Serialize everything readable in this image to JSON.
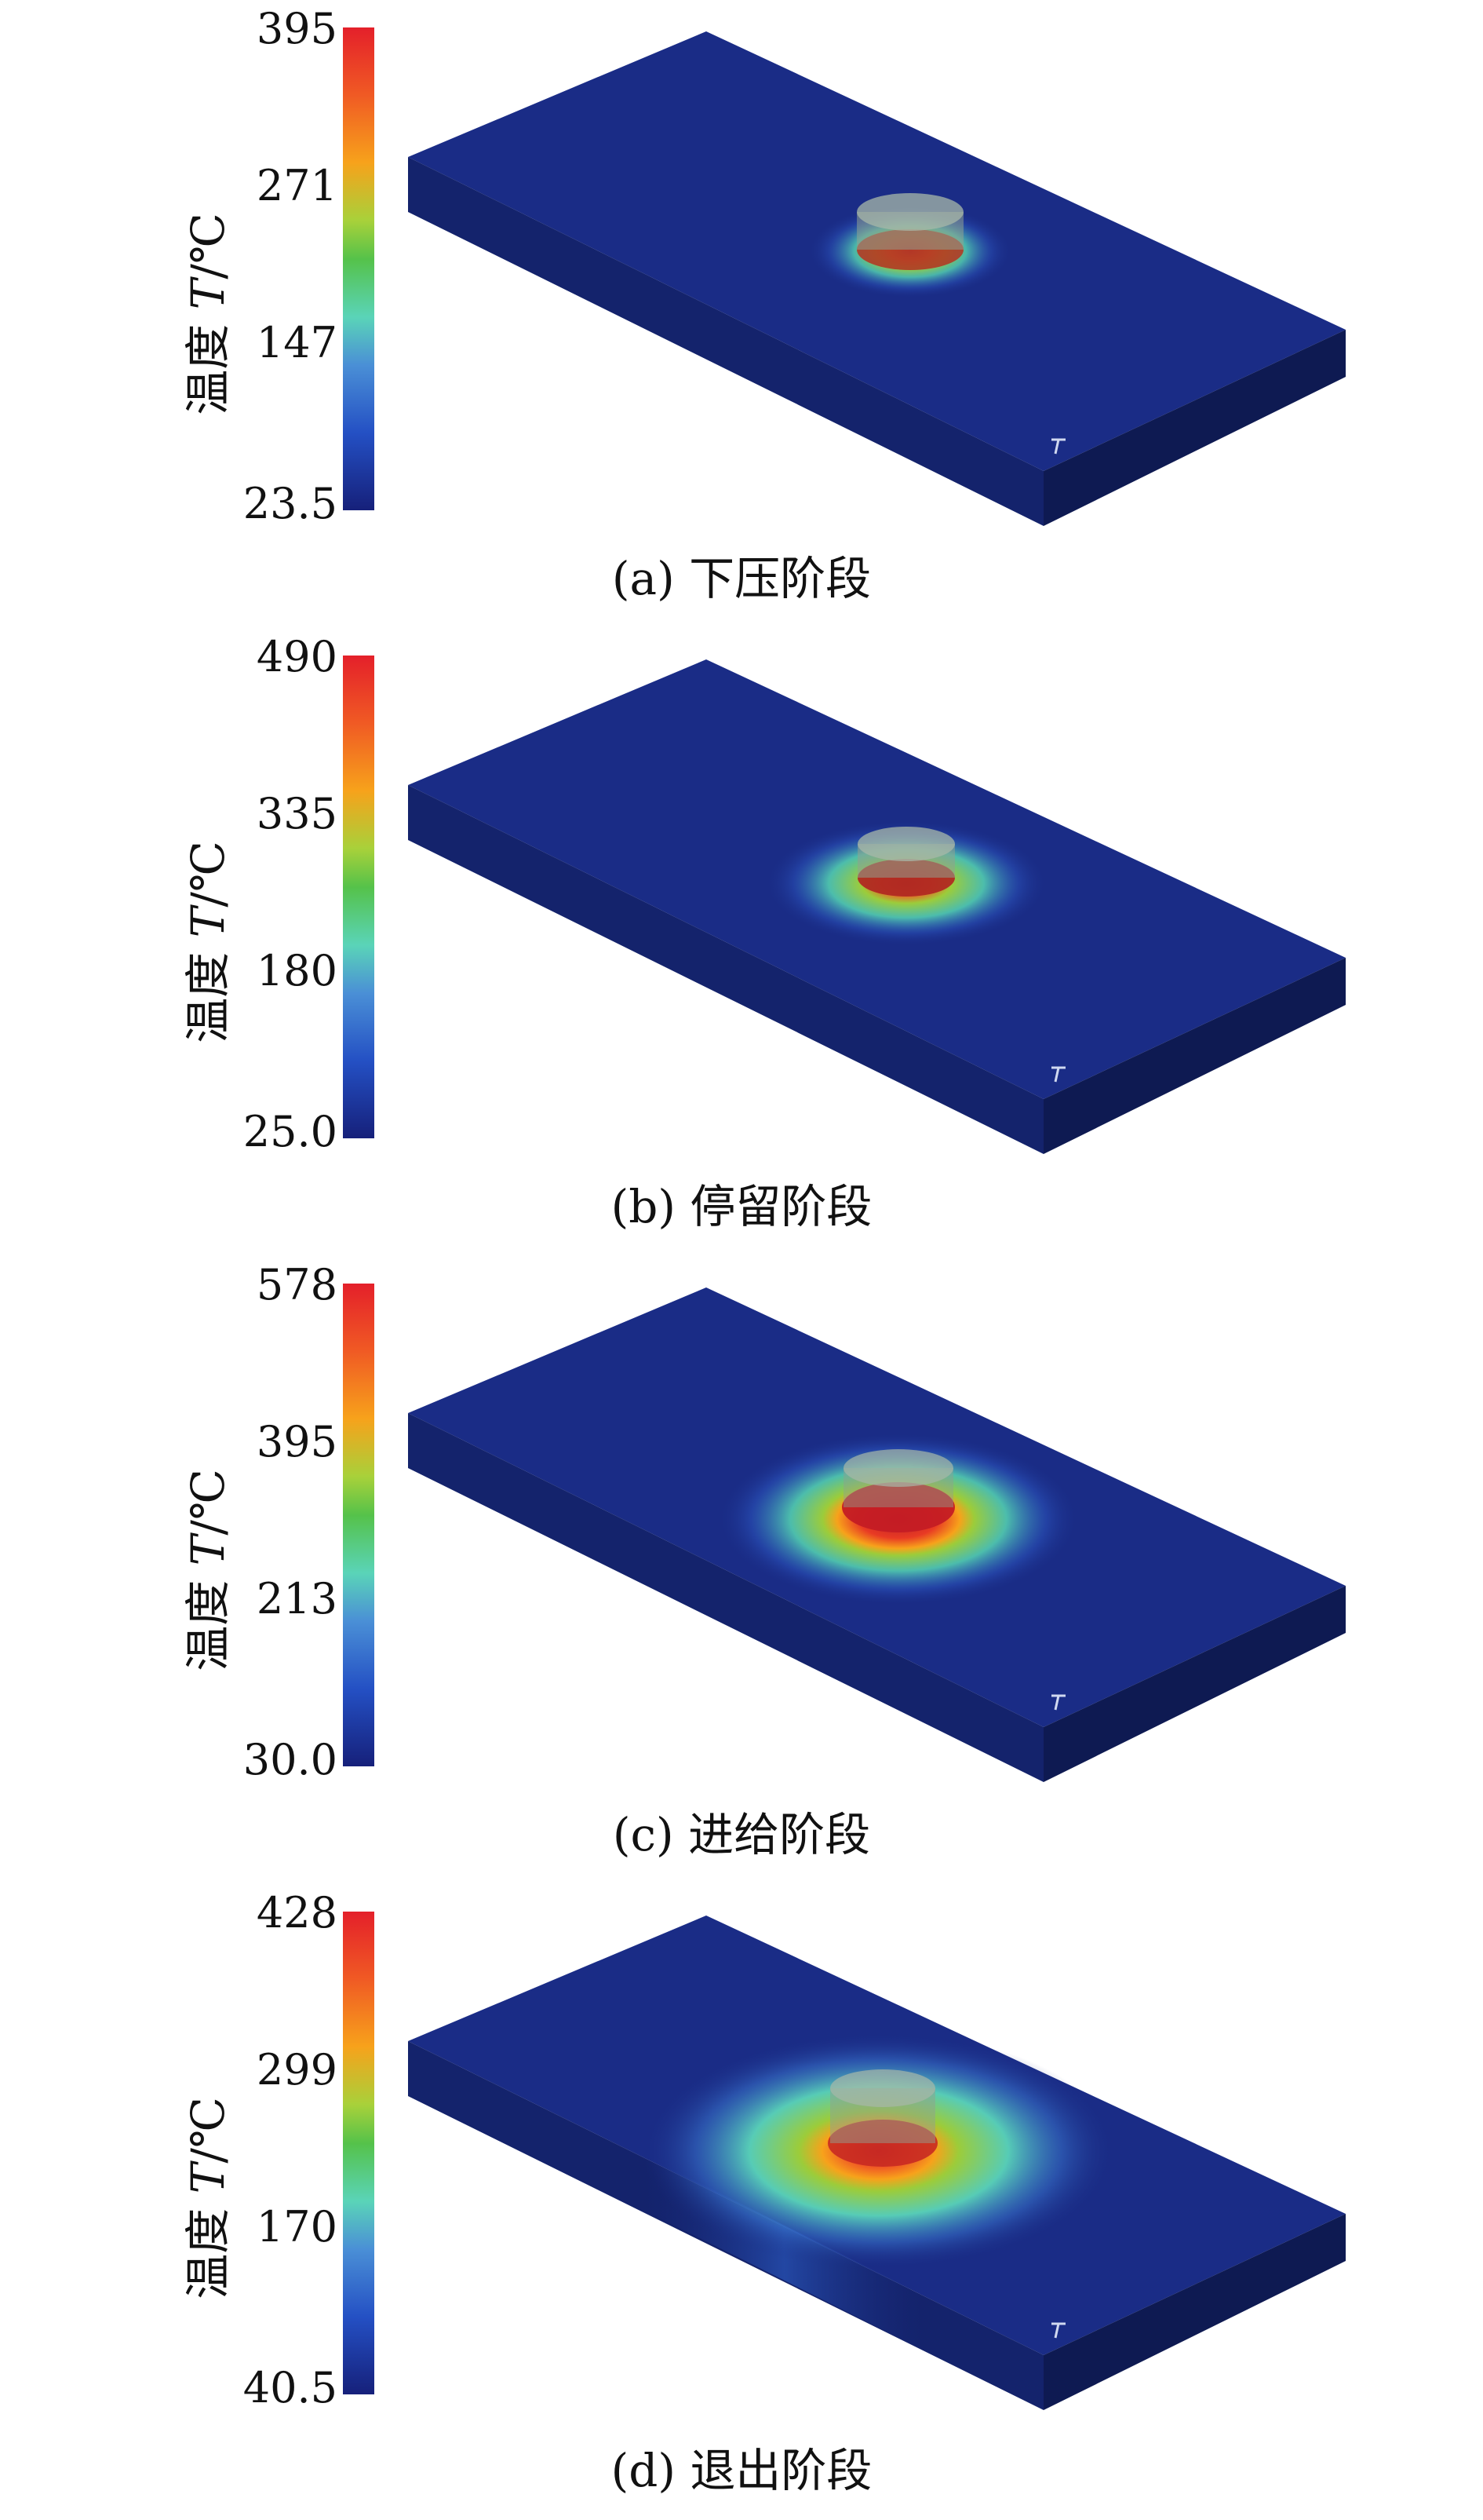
{
  "axis_label": {
    "prefix": "温度",
    "symbol": "T",
    "unit": "/℃"
  },
  "panels": [
    {
      "caption": "(a) 下压阶段",
      "ticks": [
        "395",
        "271",
        "147",
        "23.5"
      ],
      "hotspot": {
        "spread": 0.55,
        "intensity": 0.7
      }
    },
    {
      "caption": "(b) 停留阶段",
      "ticks": [
        "490",
        "335",
        "180",
        "25.0"
      ],
      "hotspot": {
        "spread": 0.7,
        "intensity": 0.85
      }
    },
    {
      "caption": "(c) 进给阶段",
      "ticks": [
        "578",
        "395",
        "213",
        "30.0"
      ],
      "hotspot": {
        "spread": 0.85,
        "intensity": 1.0
      }
    },
    {
      "caption": "(d) 退出阶段",
      "ticks": [
        "428",
        "299",
        "170",
        "40.5"
      ],
      "hotspot": {
        "spread": 1.0,
        "intensity": 0.8
      }
    }
  ],
  "colors": {
    "hot": "#e4202a",
    "warm": "#f7a21b",
    "mid": "#55c24a",
    "cool": "#5ad4b8",
    "cold": "#16207a",
    "plate_top": "#1a2c86",
    "plate_side": "#0e1a52"
  }
}
